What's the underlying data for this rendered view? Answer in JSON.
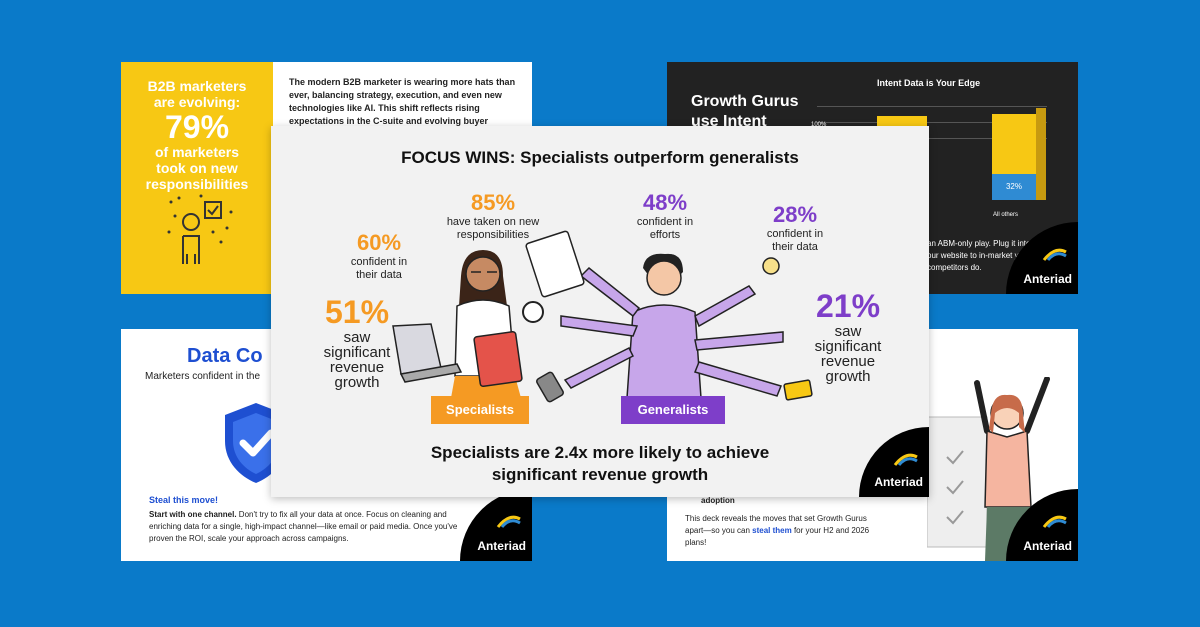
{
  "card_top_left": {
    "line1": "B2B marketers",
    "line2": "are evolving:",
    "big": "79%",
    "line3": "of marketers",
    "line4": "took on new",
    "line5": "responsibilities",
    "body": "The modern B2B marketer is wearing more hats than ever, balancing strategy, execution, and even new technologies like AI. This shift reflects rising expectations in the C-suite and evolving buyer demands."
  },
  "card_top_right": {
    "chart_title": "Intent Data is Your Edge",
    "headline_1": "Growth Gurus",
    "headline_2": "use Intent",
    "tick_100": "100%",
    "bar_label": "32%",
    "category": "All others",
    "body": "an ABM-only play. Plug it into our website to in-market your competitors do.",
    "logo": "Anteriad"
  },
  "card_bottom_left": {
    "title": "Data Co",
    "subtitle": "Marketers confident in the",
    "steal": "Steal this move!",
    "body_bold": "Start with one channel.",
    "body": " Don't try to fix all your data at once. Focus on cleaning and enriching data for a single, high-impact channel—like email or paid media. Once you've proven the ROI, scale your approach across campaigns.",
    "logo": "Anteriad"
  },
  "card_bottom_right": {
    "adoption": "adoption",
    "body_1": "This deck reveals the moves that set Growth Gurus apart—so you can ",
    "body_highlight": "steal them",
    "body_2": " for your H2 and 2026 plans!",
    "logo": "Anteriad"
  },
  "main": {
    "title": "FOCUS WINS: Specialists outperform generalists",
    "specialists": {
      "label": "Specialists",
      "stat_85": {
        "value": "85%",
        "desc_1": "have taken on new",
        "desc_2": "responsibilities"
      },
      "stat_60": {
        "value": "60%",
        "desc_1": "confident in",
        "desc_2": "their data"
      },
      "stat_51": {
        "value": "51%",
        "desc_1": "saw",
        "desc_2": "significant",
        "desc_3": "revenue",
        "desc_4": "growth"
      }
    },
    "generalists": {
      "label": "Generalists",
      "stat_48": {
        "value": "48%",
        "desc_1": "confident in",
        "desc_2": "efforts"
      },
      "stat_28": {
        "value": "28%",
        "desc_1": "confident in",
        "desc_2": "their data"
      },
      "stat_21": {
        "value": "21%",
        "desc_1": "saw",
        "desc_2": "significant",
        "desc_3": "revenue",
        "desc_4": "growth"
      }
    },
    "footer_1": "Specialists are 2.4x more likely to achieve",
    "footer_2": "significant revenue growth",
    "logo": "Anteriad"
  },
  "colors": {
    "background": "#0a7ac9",
    "orange": "#f59a23",
    "purple": "#7e3ec9",
    "yellow": "#f7c814",
    "blue": "#1e4fd1"
  }
}
